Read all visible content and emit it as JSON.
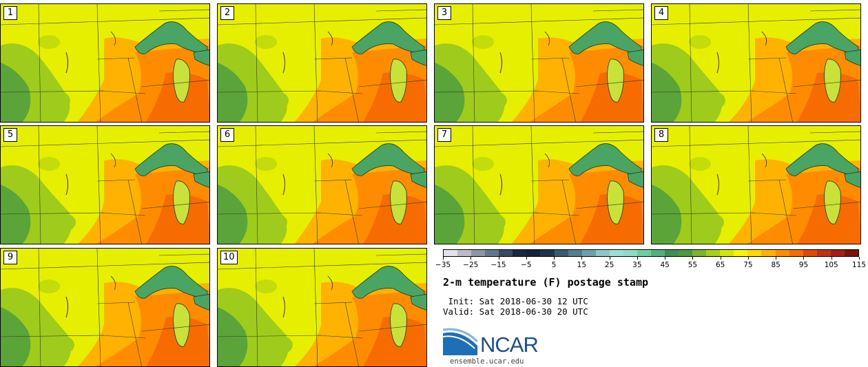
{
  "panels": [
    {
      "label": "1"
    },
    {
      "label": "2"
    },
    {
      "label": "3"
    },
    {
      "label": "4"
    },
    {
      "label": "5"
    },
    {
      "label": "6"
    },
    {
      "label": "7"
    },
    {
      "label": "8"
    },
    {
      "label": "9"
    },
    {
      "label": "10"
    }
  ],
  "colorbar": {
    "colors": [
      "#e2e2ea",
      "#bcbcc8",
      "#8d95a5",
      "#67778b",
      "#3a4b60",
      "#172a3e",
      "#12233a",
      "#20354a",
      "#3a5a6e",
      "#557e8c",
      "#6fa0aa",
      "#8fc5c6",
      "#9adfd6",
      "#8fdcc4",
      "#6fcf9c",
      "#52b07a",
      "#3f9050",
      "#4c9a3c",
      "#78b52a",
      "#a8cf18",
      "#d6e604",
      "#f7f500",
      "#ffd800",
      "#ffb300",
      "#ff8c00",
      "#f76c00",
      "#e04a00",
      "#c33012",
      "#a51d14",
      "#7a1208"
    ],
    "tick_labels": [
      "-35",
      "-25",
      "-15",
      "-5",
      "5",
      "15",
      "25",
      "35",
      "45",
      "55",
      "65",
      "75",
      "85",
      "95",
      "105",
      "115"
    ]
  },
  "title": "2-m temperature (F) postage stamp",
  "init": " Init: Sat 2018-06-30 12 UTC",
  "valid": "Valid: Sat 2018-06-30 20 UTC",
  "logo_text": "NCAR",
  "website": "ensemble.ucar.edu"
}
